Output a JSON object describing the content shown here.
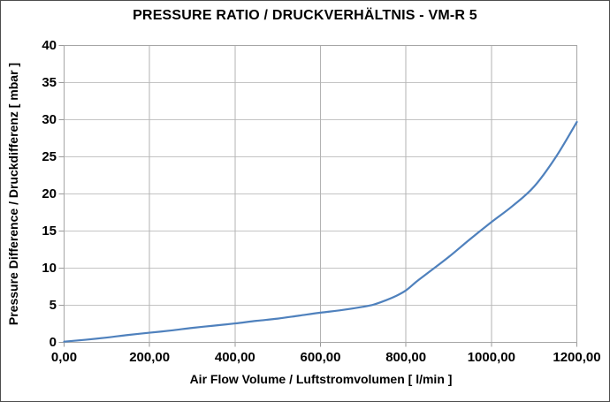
{
  "chart_data": {
    "type": "line",
    "title": "PRESSURE RATIO / DRUCKVERHÄLTNIS - VM-R 5",
    "xlabel": "Air Flow Volume / Luftstromvolumen [ l/min ]",
    "ylabel": "Pressure Difference / Druckdifferenz [ mbar ]",
    "xlim": [
      0,
      1200
    ],
    "ylim": [
      0,
      40
    ],
    "x_tick_labels": [
      "0,00",
      "200,00",
      "400,00",
      "600,00",
      "800,00",
      "1000,00",
      "1200,00"
    ],
    "x_tick_values": [
      0,
      200,
      400,
      600,
      800,
      1000,
      1200
    ],
    "y_tick_labels": [
      "0",
      "5",
      "10",
      "15",
      "20",
      "25",
      "30",
      "35",
      "40"
    ],
    "y_tick_values": [
      0,
      5,
      10,
      15,
      20,
      25,
      30,
      35,
      40
    ],
    "grid": true,
    "legend": false,
    "colors": {
      "line": "#4F81BD",
      "grid_horizontal": "#c4c4c4",
      "grid_vertical": "#b3b3b3",
      "plot_border": "#a6a6a6",
      "axis_line": "#9a9a9a",
      "text": "#000000"
    },
    "series": [
      {
        "x": [
          0,
          50,
          100,
          150,
          200,
          250,
          300,
          350,
          400,
          450,
          500,
          550,
          600,
          650,
          700,
          725,
          750,
          775,
          800,
          825,
          850,
          900,
          950,
          1000,
          1050,
          1100,
          1150,
          1200
        ],
        "y": [
          0.1,
          0.35,
          0.65,
          1.0,
          1.3,
          1.6,
          1.95,
          2.25,
          2.55,
          2.9,
          3.2,
          3.6,
          4.0,
          4.35,
          4.8,
          5.1,
          5.6,
          6.2,
          7.0,
          8.2,
          9.3,
          11.5,
          13.9,
          16.2,
          18.4,
          21.0,
          24.9,
          29.7
        ]
      }
    ]
  }
}
